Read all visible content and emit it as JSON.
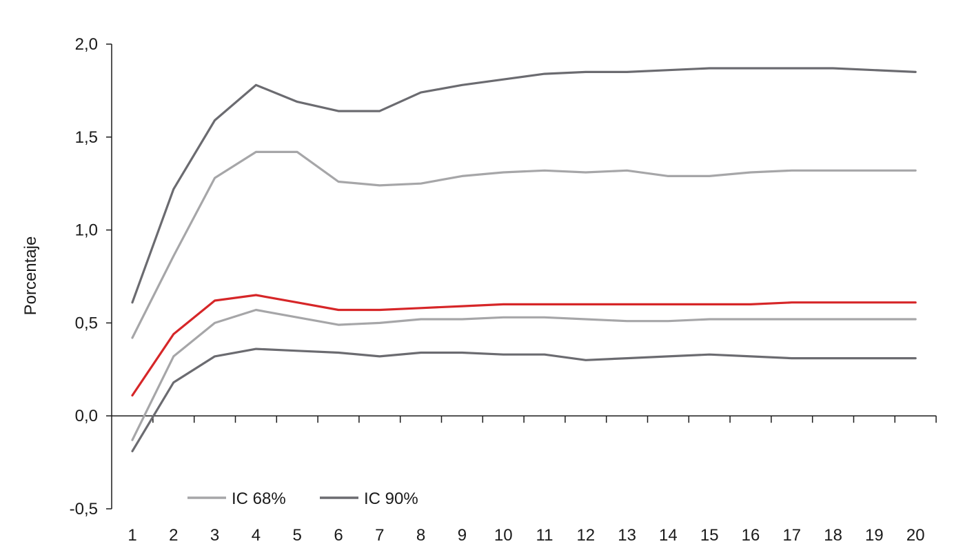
{
  "chart_data": {
    "type": "line",
    "title": "",
    "xlabel": "",
    "ylabel": "Porcentaje",
    "categories": [
      "1",
      "2",
      "3",
      "4",
      "5",
      "6",
      "7",
      "8",
      "9",
      "10",
      "11",
      "12",
      "13",
      "14",
      "15",
      "16",
      "17",
      "18",
      "19",
      "20"
    ],
    "ylim": [
      -0.5,
      2.0
    ],
    "y_ticks": [
      "-0,5",
      "0,0",
      "0,5",
      "1,0",
      "1,5",
      "2,0"
    ],
    "y_tick_values": [
      -0.5,
      0.0,
      0.5,
      1.0,
      1.5,
      2.0
    ],
    "grid": false,
    "legend_position": "bottom-left",
    "legend": [
      {
        "label": "IC 68%",
        "color": "#a6a6a8"
      },
      {
        "label": "IC 90%",
        "color": "#6b6b70"
      }
    ],
    "series": [
      {
        "key": "ic90_upper",
        "color": "#6b6b70",
        "values": [
          0.61,
          1.22,
          1.59,
          1.78,
          1.69,
          1.64,
          1.64,
          1.74,
          1.78,
          1.81,
          1.84,
          1.85,
          1.85,
          1.86,
          1.87,
          1.87,
          1.87,
          1.87,
          1.86,
          1.85
        ]
      },
      {
        "key": "ic68_upper",
        "color": "#a6a6a8",
        "values": [
          0.42,
          0.86,
          1.28,
          1.42,
          1.42,
          1.26,
          1.24,
          1.25,
          1.29,
          1.31,
          1.32,
          1.31,
          1.32,
          1.29,
          1.29,
          1.31,
          1.32,
          1.32,
          1.32,
          1.32
        ]
      },
      {
        "key": "central",
        "color": "#d62628",
        "values": [
          0.11,
          0.44,
          0.62,
          0.65,
          0.61,
          0.57,
          0.57,
          0.58,
          0.59,
          0.6,
          0.6,
          0.6,
          0.6,
          0.6,
          0.6,
          0.6,
          0.61,
          0.61,
          0.61,
          0.61
        ]
      },
      {
        "key": "ic68_lower",
        "color": "#a6a6a8",
        "values": [
          -0.13,
          0.32,
          0.5,
          0.57,
          0.53,
          0.49,
          0.5,
          0.52,
          0.52,
          0.53,
          0.53,
          0.52,
          0.51,
          0.51,
          0.52,
          0.52,
          0.52,
          0.52,
          0.52,
          0.52
        ]
      },
      {
        "key": "ic90_lower",
        "color": "#6b6b70",
        "values": [
          -0.19,
          0.18,
          0.32,
          0.36,
          0.35,
          0.34,
          0.32,
          0.34,
          0.34,
          0.33,
          0.33,
          0.3,
          0.31,
          0.32,
          0.33,
          0.32,
          0.31,
          0.31,
          0.31,
          0.31
        ]
      }
    ]
  }
}
